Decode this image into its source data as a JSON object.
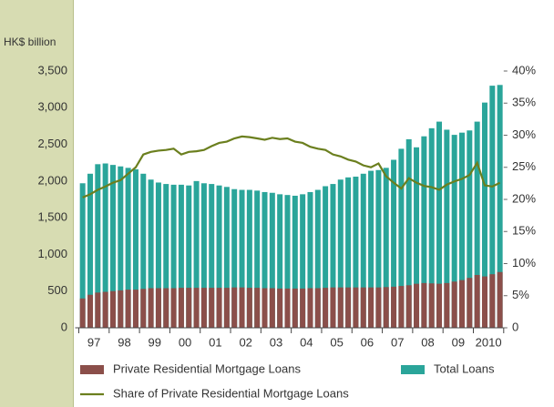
{
  "chart_data": {
    "type": "bar",
    "y_axis_label": "HK$ billion",
    "categories": [
      "97",
      null,
      null,
      null,
      "98",
      null,
      null,
      null,
      "99",
      null,
      null,
      null,
      "00",
      null,
      null,
      null,
      "01",
      null,
      null,
      null,
      "02",
      null,
      null,
      null,
      "03",
      null,
      null,
      null,
      "04",
      null,
      null,
      null,
      "05",
      null,
      null,
      null,
      "06",
      null,
      null,
      null,
      "07",
      null,
      null,
      null,
      "08",
      null,
      null,
      null,
      "09",
      null,
      null,
      null,
      "2010",
      null,
      null,
      null
    ],
    "series": [
      {
        "name": "Total Loans",
        "type": "bar",
        "axis": "y",
        "color": "#2aa59a",
        "values": [
          1970,
          2100,
          2230,
          2240,
          2220,
          2200,
          2180,
          2160,
          2100,
          2020,
          1980,
          1960,
          1950,
          1950,
          1940,
          2000,
          1970,
          1960,
          1940,
          1920,
          1890,
          1880,
          1880,
          1870,
          1850,
          1840,
          1820,
          1810,
          1800,
          1820,
          1850,
          1880,
          1930,
          1960,
          2020,
          2050,
          2060,
          2100,
          2140,
          2150,
          2180,
          2290,
          2440,
          2570,
          2460,
          2610,
          2720,
          2810,
          2700,
          2630,
          2660,
          2690,
          2810,
          3070,
          3300,
          3310
        ]
      },
      {
        "name": "Private Residential Mortgage Loans",
        "type": "bar",
        "axis": "y",
        "color": "#8b4f4a",
        "values": [
          400,
          450,
          480,
          490,
          500,
          510,
          520,
          520,
          530,
          540,
          540,
          540,
          540,
          545,
          545,
          545,
          545,
          545,
          545,
          545,
          550,
          550,
          545,
          545,
          540,
          540,
          535,
          535,
          535,
          535,
          540,
          540,
          545,
          550,
          550,
          550,
          550,
          550,
          550,
          550,
          555,
          560,
          570,
          580,
          600,
          610,
          605,
          600,
          610,
          630,
          650,
          680,
          720,
          700,
          730,
          760
        ]
      },
      {
        "name": "Share of Private Residential Mortgage Loans",
        "type": "line",
        "axis": "y2",
        "color": "#6b7f1e",
        "values": [
          20.3,
          20.8,
          21.5,
          22.0,
          22.6,
          23.0,
          24.0,
          25.0,
          27.0,
          27.4,
          27.6,
          27.7,
          27.9,
          27.0,
          27.4,
          27.5,
          27.7,
          28.3,
          28.8,
          29.0,
          29.5,
          29.8,
          29.7,
          29.5,
          29.3,
          29.6,
          29.4,
          29.5,
          29.0,
          28.8,
          28.2,
          27.9,
          27.7,
          27.0,
          26.7,
          26.2,
          25.9,
          25.3,
          25.0,
          25.6,
          23.6,
          22.6,
          21.7,
          23.3,
          22.6,
          22.1,
          21.9,
          21.5,
          22.3,
          22.8,
          23.2,
          23.8,
          25.7,
          22.2,
          22.0,
          22.6
        ]
      }
    ],
    "ylim": [
      0,
      3500
    ],
    "yticks": [
      0,
      500,
      {
        "value": 1000,
        "label": "1,000"
      },
      {
        "value": 1500,
        "label": "1,500"
      },
      {
        "value": 2000,
        "label": "2,000"
      },
      {
        "value": 2500,
        "label": "2,500"
      },
      {
        "value": 3000,
        "label": "3,000"
      },
      {
        "value": 3500,
        "label": "3,500"
      }
    ],
    "y2lim": [
      0,
      40
    ],
    "y2ticks": [
      {
        "value": 0,
        "label": "0"
      },
      {
        "value": 5,
        "label": "5%"
      },
      {
        "value": 10,
        "label": "10%"
      },
      {
        "value": 15,
        "label": "15%"
      },
      {
        "value": 20,
        "label": "20%"
      },
      {
        "value": 25,
        "label": "25%"
      },
      {
        "value": 30,
        "label": "30%"
      },
      {
        "value": 35,
        "label": "35%"
      },
      {
        "value": 40,
        "label": "40%"
      }
    ]
  }
}
